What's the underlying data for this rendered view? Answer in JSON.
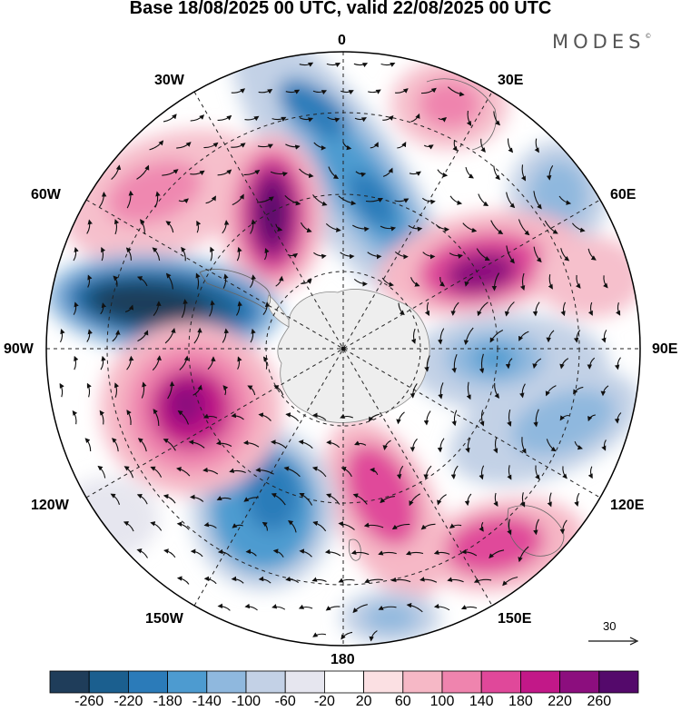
{
  "header": {
    "title": "Base 18/08/2025 00 UTC, valid 22/08/2025 00 UTC",
    "brand": "MODES",
    "brand_mark": "©"
  },
  "map": {
    "projection": "south polar stereographic",
    "longitude_labels": {
      "top": "0",
      "top_right": "30E",
      "upper_right": "60E",
      "right": "90E",
      "lower_right": "120E",
      "bottom_right": "150E",
      "bottom": "180",
      "bottom_left": "150W",
      "lower_left": "120W",
      "left": "90W",
      "upper_left": "60W",
      "top_left": "30W"
    },
    "reference_vector": {
      "label": "30"
    },
    "anomaly_centers": [
      {
        "name": "positive-anomaly-30W-60W",
        "sign": "positive",
        "peak": 140
      },
      {
        "name": "negative-anomaly-0-30W",
        "sign": "negative",
        "peak": -140
      },
      {
        "name": "positive-anomaly-30W-50W",
        "sign": "positive",
        "peak": 260
      },
      {
        "name": "negative-anomaly-60W-90W",
        "sign": "negative",
        "peak": -260
      },
      {
        "name": "positive-anomaly-30E",
        "sign": "positive",
        "peak": 100
      },
      {
        "name": "negative-anomaly-45E",
        "sign": "negative",
        "peak": -100
      },
      {
        "name": "positive-anomaly-60E-90E",
        "sign": "positive",
        "peak": 220
      },
      {
        "name": "negative-anomaly-90E",
        "sign": "negative",
        "peak": -100
      },
      {
        "name": "negative-anomaly-120E",
        "sign": "negative",
        "peak": -60
      },
      {
        "name": "positive-anomaly-150E",
        "sign": "positive",
        "peak": 180
      },
      {
        "name": "positive-anomaly-180",
        "sign": "positive",
        "peak": 180
      },
      {
        "name": "negative-anomaly-150W",
        "sign": "negative",
        "peak": -180
      },
      {
        "name": "positive-anomaly-90W-120W",
        "sign": "positive",
        "peak": 260
      },
      {
        "name": "negative-anomaly-180-south",
        "sign": "negative",
        "peak": -100
      }
    ]
  },
  "colorbar": {
    "ticks": [
      "-260",
      "-220",
      "-180",
      "-140",
      "-100",
      "-60",
      "-20",
      "20",
      "60",
      "100",
      "140",
      "180",
      "220",
      "260"
    ],
    "colors": [
      "#1f3d5a",
      "#1b5f8f",
      "#2b7bb9",
      "#4d9bd0",
      "#8fb8de",
      "#c3d1e6",
      "#e6e6ef",
      "#ffffff",
      "#fbe0e3",
      "#f6b8c6",
      "#ef84ae",
      "#e0489a",
      "#c21888",
      "#8c0e7e",
      "#54096b"
    ]
  }
}
